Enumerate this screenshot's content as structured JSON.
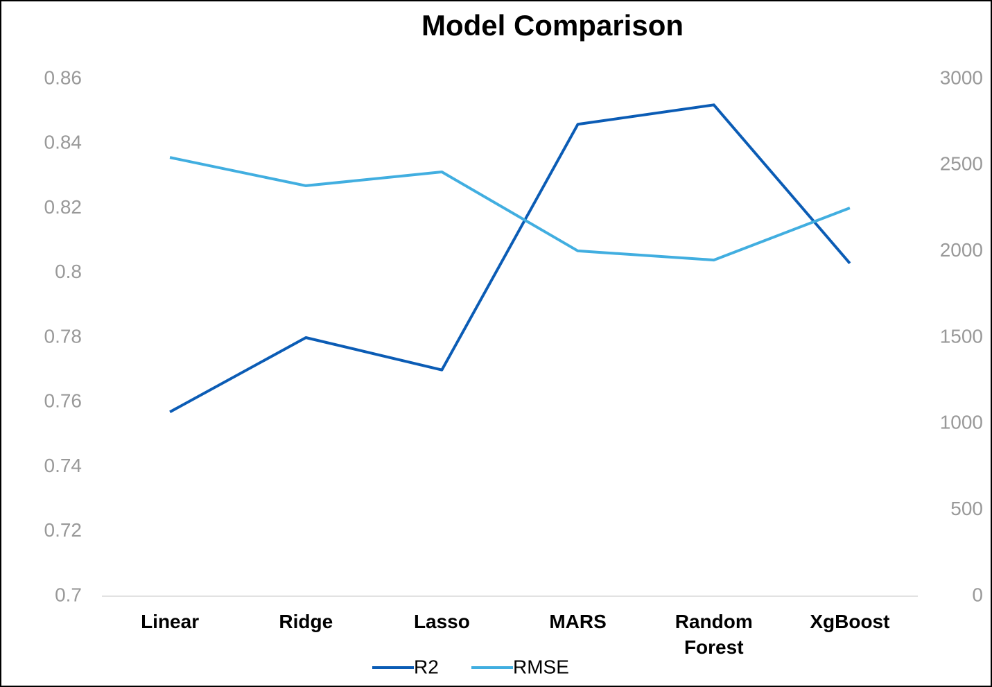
{
  "chart_data": {
    "type": "line",
    "title": "Model Comparison",
    "categories": [
      "Linear",
      "Ridge",
      "Lasso",
      "MARS",
      "Random Forest",
      "XgBoost"
    ],
    "series": [
      {
        "name": "R2",
        "color": "#0b5cb5",
        "values": [
          0.757,
          0.78,
          0.77,
          0.846,
          0.852,
          0.803
        ]
      },
      {
        "name": "RMSE",
        "color": "#41aee0",
        "axis": "y2",
        "values": [
          2545,
          2381,
          2461,
          2003,
          1950,
          2252
        ]
      }
    ],
    "ylim": [
      0.7,
      0.86
    ],
    "yticks": [
      0.7,
      0.72,
      0.74,
      0.76,
      0.78,
      0.8,
      0.82,
      0.84,
      0.86
    ],
    "y2lim": [
      0,
      3000
    ],
    "y2ticks": [
      0,
      500,
      1000,
      1500,
      2000,
      2500,
      3000
    ],
    "legend": "bottom"
  }
}
